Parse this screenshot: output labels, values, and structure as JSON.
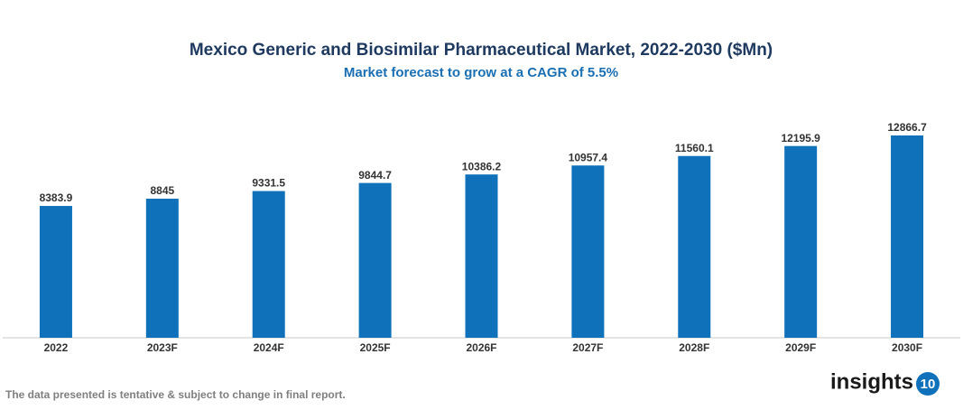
{
  "chart_data": {
    "type": "bar",
    "title": "Mexico Generic and Biosimilar Pharmaceutical Market, 2022-2030 ($Mn)",
    "subtitle": "Market forecast to grow at a CAGR of 5.5%",
    "categories": [
      "2022",
      "2023F",
      "2024F",
      "2025F",
      "2026F",
      "2027F",
      "2028F",
      "2029F",
      "2030F"
    ],
    "values": [
      8383.9,
      8845,
      9331.5,
      9844.7,
      10386.2,
      10957.4,
      11560.1,
      12195.9,
      12866.7
    ],
    "color": "#1071bb"
  },
  "footer": {
    "note": "The data presented is tentative & subject to change in final report.",
    "logo_text": "insights",
    "logo_number": "10"
  }
}
